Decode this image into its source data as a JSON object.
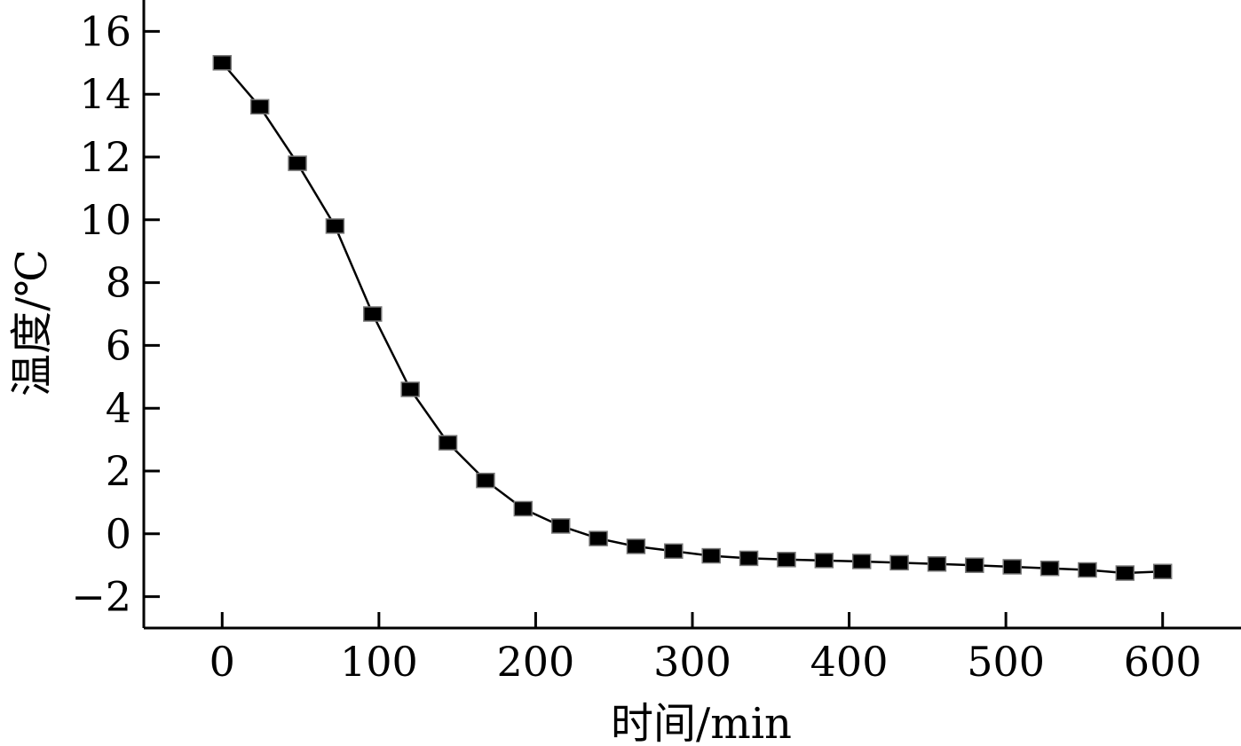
{
  "chart_data": {
    "type": "line",
    "title": "",
    "xlabel": "时间/min",
    "ylabel": "温度/℃",
    "xlim": [
      -50,
      650
    ],
    "ylim": [
      -3,
      17
    ],
    "xticks": [
      0,
      100,
      200,
      300,
      400,
      500,
      600
    ],
    "xtick_labels": [
      "0",
      "100",
      "200",
      "300",
      "400",
      "500",
      "600"
    ],
    "yticks": [
      -2,
      0,
      2,
      4,
      6,
      8,
      10,
      12,
      14,
      16
    ],
    "ytick_labels": [
      "−2",
      "0",
      "2",
      "4",
      "6",
      "8",
      "10",
      "12",
      "14",
      "16"
    ],
    "grid": false,
    "legend": "none",
    "line_color": "#000000",
    "marker": "square",
    "series": [
      {
        "x": [
          0,
          24,
          48,
          72,
          96,
          120,
          144,
          168,
          192,
          216,
          240,
          264,
          288,
          312,
          336,
          360,
          384,
          408,
          432,
          456,
          480,
          504,
          528,
          552,
          576,
          600
        ],
        "y": [
          15.0,
          13.6,
          11.8,
          9.8,
          7.0,
          4.6,
          2.9,
          1.7,
          0.8,
          0.25,
          -0.15,
          -0.4,
          -0.55,
          -0.7,
          -0.78,
          -0.82,
          -0.85,
          -0.88,
          -0.92,
          -0.96,
          -1.0,
          -1.05,
          -1.1,
          -1.15,
          -1.25,
          -1.2
        ]
      }
    ]
  }
}
